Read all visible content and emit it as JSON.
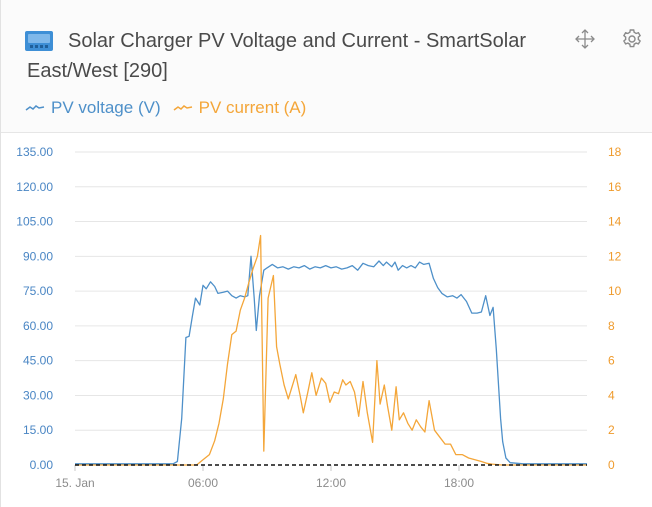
{
  "header": {
    "title": "Solar Charger PV Voltage and Current - SmartSolar East/West [290]",
    "brand_icon": "charger-device-icon",
    "move_icon": "move-arrows-icon",
    "settings_icon": "gear-icon"
  },
  "legend": {
    "voltage_label": "PV voltage (V)",
    "current_label": "PV current (A)"
  },
  "colors": {
    "voltage": "#4e90c9",
    "current": "#f4a639",
    "left_tick": "#4a86c4",
    "right_tick": "#ef9b2d",
    "brand": "#3e8fd6"
  },
  "chart_data": {
    "type": "line",
    "x_unit": "hours after 00:00, 15. Jan",
    "xlim": [
      0,
      24
    ],
    "x_ticks": [
      {
        "x": 0,
        "label": "15. Jan"
      },
      {
        "x": 6,
        "label": "06:00"
      },
      {
        "x": 12,
        "label": "12:00"
      },
      {
        "x": 18,
        "label": "18:00"
      }
    ],
    "y_left": {
      "ylim": [
        0,
        135
      ],
      "ticks": [
        "0.00",
        "15.00",
        "30.00",
        "45.00",
        "60.00",
        "75.00",
        "90.00",
        "105.00",
        "120.00",
        "135.00"
      ]
    },
    "y_right": {
      "ylim": [
        0,
        18
      ],
      "ticks": [
        "0",
        "2",
        "4",
        "6",
        "8",
        "10",
        "12",
        "14",
        "16",
        "18"
      ]
    },
    "grid": true,
    "legend_position": "top-left",
    "series": [
      {
        "name": "PV voltage (V)",
        "axis": "left",
        "points": [
          [
            0,
            0.5
          ],
          [
            4.6,
            0.5
          ],
          [
            4.8,
            1.5
          ],
          [
            5.0,
            20
          ],
          [
            5.2,
            55
          ],
          [
            5.35,
            55.5
          ],
          [
            5.5,
            64
          ],
          [
            5.65,
            72
          ],
          [
            5.85,
            69
          ],
          [
            6.0,
            77.5
          ],
          [
            6.15,
            76
          ],
          [
            6.35,
            79
          ],
          [
            6.55,
            77
          ],
          [
            6.7,
            74
          ],
          [
            6.95,
            74.5
          ],
          [
            7.15,
            75
          ],
          [
            7.35,
            73
          ],
          [
            7.55,
            72
          ],
          [
            7.75,
            73
          ],
          [
            7.95,
            72.5
          ],
          [
            8.1,
            73
          ],
          [
            8.25,
            90
          ],
          [
            8.4,
            72
          ],
          [
            8.5,
            58
          ],
          [
            8.65,
            73
          ],
          [
            8.85,
            84
          ],
          [
            9.0,
            85
          ],
          [
            9.25,
            86.5
          ],
          [
            9.5,
            85
          ],
          [
            9.75,
            85.5
          ],
          [
            10.0,
            84.5
          ],
          [
            10.25,
            85.5
          ],
          [
            10.5,
            85
          ],
          [
            10.75,
            86
          ],
          [
            11.0,
            84.5
          ],
          [
            11.25,
            85.5
          ],
          [
            11.5,
            85
          ],
          [
            11.75,
            86
          ],
          [
            12.0,
            85
          ],
          [
            12.25,
            85.5
          ],
          [
            12.5,
            84.5
          ],
          [
            12.75,
            85
          ],
          [
            13.0,
            86
          ],
          [
            13.25,
            84
          ],
          [
            13.5,
            87
          ],
          [
            13.75,
            86
          ],
          [
            14.0,
            85.5
          ],
          [
            14.25,
            88
          ],
          [
            14.45,
            86
          ],
          [
            14.6,
            87.5
          ],
          [
            14.85,
            85.5
          ],
          [
            15.0,
            87.5
          ],
          [
            15.15,
            84
          ],
          [
            15.35,
            86
          ],
          [
            15.55,
            85
          ],
          [
            15.75,
            86
          ],
          [
            15.95,
            85
          ],
          [
            16.15,
            87.5
          ],
          [
            16.35,
            86.5
          ],
          [
            16.6,
            87
          ],
          [
            16.8,
            80.5
          ],
          [
            17.0,
            76.5
          ],
          [
            17.2,
            74
          ],
          [
            17.45,
            72.5
          ],
          [
            17.7,
            73
          ],
          [
            17.9,
            72
          ],
          [
            18.1,
            73.5
          ],
          [
            18.35,
            70.5
          ],
          [
            18.6,
            65.5
          ],
          [
            18.85,
            65.5
          ],
          [
            19.05,
            66
          ],
          [
            19.25,
            73
          ],
          [
            19.45,
            64.5
          ],
          [
            19.6,
            68
          ],
          [
            19.75,
            50
          ],
          [
            19.95,
            20
          ],
          [
            20.05,
            10
          ],
          [
            20.2,
            3
          ],
          [
            20.4,
            1
          ],
          [
            21.0,
            0.5
          ],
          [
            24,
            0.5
          ]
        ]
      },
      {
        "name": "PV current (A)",
        "axis": "right",
        "points": [
          [
            0,
            0
          ],
          [
            5.7,
            0
          ],
          [
            6.0,
            0.3
          ],
          [
            6.3,
            0.6
          ],
          [
            6.55,
            1.4
          ],
          [
            6.75,
            2.4
          ],
          [
            6.95,
            3.8
          ],
          [
            7.15,
            5.8
          ],
          [
            7.35,
            7.5
          ],
          [
            7.55,
            7.7
          ],
          [
            7.75,
            8.9
          ],
          [
            7.95,
            9.6
          ],
          [
            8.15,
            10.5
          ],
          [
            8.35,
            11.3
          ],
          [
            8.55,
            12.0
          ],
          [
            8.7,
            13.2
          ],
          [
            8.85,
            0.8
          ],
          [
            9.05,
            9.6
          ],
          [
            9.3,
            10.9
          ],
          [
            9.45,
            6.8
          ],
          [
            9.6,
            5.8
          ],
          [
            9.8,
            4.6
          ],
          [
            10.0,
            3.8
          ],
          [
            10.15,
            4.4
          ],
          [
            10.35,
            5.2
          ],
          [
            10.55,
            4.0
          ],
          [
            10.7,
            3.0
          ],
          [
            10.9,
            4.1
          ],
          [
            11.1,
            5.3
          ],
          [
            11.3,
            4.0
          ],
          [
            11.55,
            5.0
          ],
          [
            11.75,
            4.7
          ],
          [
            11.95,
            3.6
          ],
          [
            12.15,
            4.2
          ],
          [
            12.35,
            4.1
          ],
          [
            12.55,
            4.9
          ],
          [
            12.7,
            4.6
          ],
          [
            12.9,
            4.8
          ],
          [
            13.1,
            4.2
          ],
          [
            13.3,
            2.8
          ],
          [
            13.5,
            4.8
          ],
          [
            13.7,
            3.0
          ],
          [
            13.95,
            1.3
          ],
          [
            14.15,
            6.0
          ],
          [
            14.3,
            3.5
          ],
          [
            14.5,
            4.6
          ],
          [
            14.65,
            3.4
          ],
          [
            14.85,
            2.0
          ],
          [
            15.05,
            4.5
          ],
          [
            15.2,
            2.6
          ],
          [
            15.4,
            3.0
          ],
          [
            15.6,
            2.4
          ],
          [
            15.8,
            2.0
          ],
          [
            16.0,
            2.6
          ],
          [
            16.2,
            2.2
          ],
          [
            16.4,
            1.9
          ],
          [
            16.6,
            3.7
          ],
          [
            16.85,
            2.0
          ],
          [
            17.1,
            1.6
          ],
          [
            17.35,
            1.2
          ],
          [
            17.6,
            1.2
          ],
          [
            17.85,
            0.6
          ],
          [
            18.15,
            0.6
          ],
          [
            18.45,
            0.4
          ],
          [
            18.75,
            0.3
          ],
          [
            19.05,
            0.2
          ],
          [
            19.3,
            0.1
          ],
          [
            19.55,
            0.05
          ],
          [
            20.0,
            0
          ],
          [
            24,
            0
          ]
        ]
      }
    ]
  }
}
